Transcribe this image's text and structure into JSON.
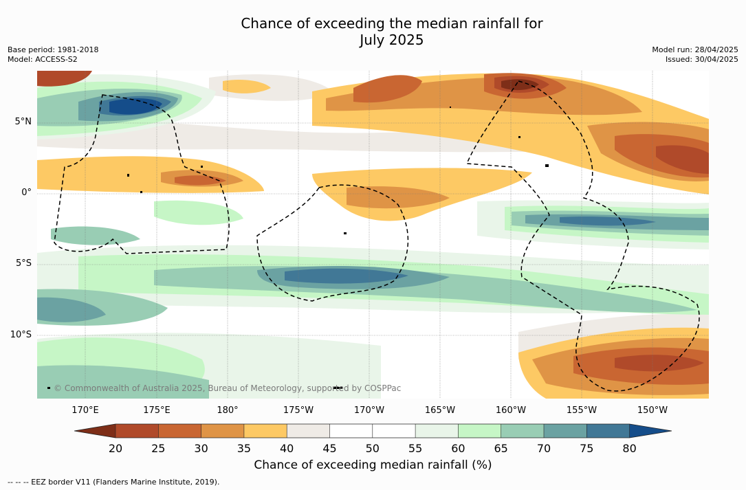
{
  "title": {
    "line1": "Chance of exceeding the median rainfall for",
    "line2": "July 2025"
  },
  "meta_left": {
    "base_period": "Base period: 1981-2018",
    "model": "Model: ACCESS-S2"
  },
  "meta_right": {
    "model_run": "Model run: 28/04/2025",
    "issued": "Issued: 30/04/2025"
  },
  "map": {
    "lat_labels": [
      "5°N",
      "0°",
      "5°S",
      "10°S"
    ],
    "lon_labels": [
      "170°E",
      "175°E",
      "180°",
      "175°W",
      "170°W",
      "165°W",
      "160°W",
      "155°W",
      "150°W"
    ],
    "copyright": "© Commonwealth of Australia 2025, Bureau of Meteorology, supported by COSPPac",
    "feature_icons": [
      "eez-border-dashed-line",
      "island-coastline"
    ]
  },
  "colorbar": {
    "ticks": [
      "20",
      "25",
      "30",
      "35",
      "40",
      "45",
      "50",
      "55",
      "60",
      "65",
      "70",
      "75",
      "80"
    ],
    "label": "Chance of exceeding median rainfall (%)",
    "colors": {
      "below_20": "#7e2e18",
      "20_25": "#b04a2a",
      "25_30": "#c96632",
      "30_35": "#df9446",
      "35_40": "#fdc964",
      "40_45": "#efebe6",
      "45_50": "#ffffff",
      "50_55": "#ffffff",
      "55_60": "#e9f5e9",
      "60_65": "#c6f6c6",
      "65_70": "#99cdb4",
      "70_75": "#6ba2a2",
      "75_80": "#417896",
      "above_80": "#154d8a"
    }
  },
  "legend_note": "--  --  -- EEZ border V11 (Flanders Marine Institute, 2019)."
}
